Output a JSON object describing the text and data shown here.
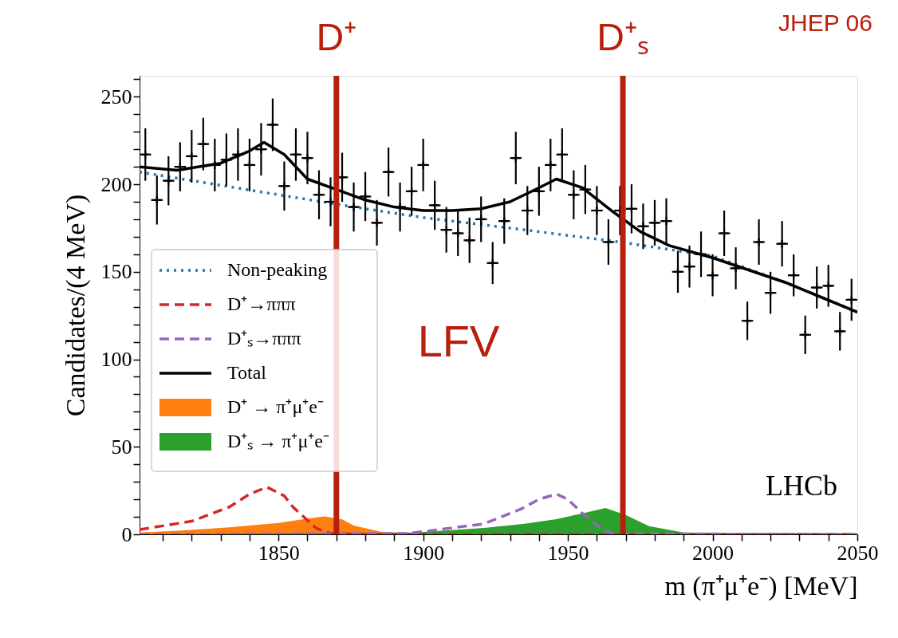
{
  "chart_data": {
    "type": "line",
    "xlabel": "m (π⁺μ⁺e⁻) [MeV]",
    "ylabel": "Candidates/(4 MeV)",
    "xlim": [
      1802,
      2050
    ],
    "xticks": [
      {
        "value": 1810,
        "label": null
      },
      {
        "value": 1820,
        "label": null
      },
      {
        "value": 1830,
        "label": null
      },
      {
        "value": 1840,
        "label": null
      },
      1850,
      {
        "value": 1860,
        "label": null
      },
      {
        "value": 1870,
        "label": null
      },
      {
        "value": 1880,
        "label": null
      },
      {
        "value": 1890,
        "label": null
      },
      1900,
      {
        "value": 1910,
        "label": null
      },
      {
        "value": 1920,
        "label": null
      },
      {
        "value": 1930,
        "label": null
      },
      {
        "value": 1940,
        "label": null
      },
      1950,
      {
        "value": 1960,
        "label": null
      },
      {
        "value": 1970,
        "label": null
      },
      {
        "value": 1980,
        "label": null
      },
      {
        "value": 1990,
        "label": null
      },
      2000,
      {
        "value": 2010,
        "label": null
      },
      {
        "value": 2020,
        "label": null
      },
      {
        "value": 2030,
        "label": null
      },
      {
        "value": 2040,
        "label": null
      },
      2050
    ],
    "ylim": [
      0,
      262
    ],
    "yticks": [
      0,
      {
        "value": 10,
        "label": null
      },
      {
        "value": 20,
        "label": null
      },
      {
        "value": 30,
        "label": null
      },
      {
        "value": 40,
        "label": null
      },
      50,
      {
        "value": 60,
        "label": null
      },
      {
        "value": 70,
        "label": null
      },
      {
        "value": 80,
        "label": null
      },
      {
        "value": 90,
        "label": null
      },
      100,
      {
        "value": 110,
        "label": null
      },
      {
        "value": 120,
        "label": null
      },
      {
        "value": 130,
        "label": null
      },
      {
        "value": 140,
        "label": null
      },
      150,
      {
        "value": 160,
        "label": null
      },
      {
        "value": 170,
        "label": null
      },
      {
        "value": 180,
        "label": null
      },
      {
        "value": 190,
        "label": null
      },
      200,
      {
        "value": 210,
        "label": null
      },
      {
        "value": 220,
        "label": null
      },
      {
        "value": 230,
        "label": null
      },
      {
        "value": 240,
        "label": null
      },
      250,
      {
        "value": 260,
        "label": null
      }
    ],
    "grid": false,
    "legend": "left",
    "series": [
      {
        "name": "Non-peaking",
        "line_style": "dotted",
        "color": "#1f77b4",
        "x": [
          1802,
          1850,
          1880,
          1900,
          1930,
          1968,
          2000,
          2025,
          2050
        ],
        "values": [
          207,
          194,
          186,
          181,
          175,
          167,
          159,
          144,
          127
        ]
      },
      {
        "name": "D⁺→πππ",
        "line_style": "dashed",
        "color": "#d62728",
        "x": [
          1802,
          1820,
          1833,
          1840,
          1846,
          1852,
          1855,
          1863,
          1868,
          1880,
          1950,
          2050
        ],
        "values": [
          2.7,
          7.5,
          15.6,
          23,
          27,
          22,
          15.6,
          3.5,
          0.5,
          0,
          0,
          0
        ]
      },
      {
        "name": "D⁺ₛ→πππ",
        "line_style": "dashed",
        "color": "#9467bd",
        "x": [
          1802,
          1895,
          1921,
          1934,
          1940,
          1946,
          1950,
          1955,
          1963,
          1967,
          2050
        ],
        "values": [
          0,
          0.5,
          6,
          14.6,
          20,
          23,
          20,
          12,
          1.5,
          0.3,
          0
        ]
      },
      {
        "name": "Total",
        "line_style": "solid",
        "color": "#000000",
        "x": [
          1802,
          1815,
          1830,
          1840,
          1845,
          1852,
          1860,
          1870,
          1880,
          1890,
          1900,
          1910,
          1920,
          1930,
          1940,
          1946,
          1955,
          1965,
          1975,
          1985,
          2000,
          2025,
          2050
        ],
        "values": [
          210,
          208,
          212,
          219,
          224,
          217,
          203,
          197,
          191,
          187,
          185,
          185,
          186,
          190,
          198,
          203,
          198,
          185,
          173,
          165,
          158,
          144,
          127
        ]
      },
      {
        "name": "D⁺ → π⁺μ⁺e⁻",
        "type": "area",
        "color": "#ff7f0e",
        "x": [
          1802,
          1815,
          1833,
          1850,
          1860,
          1866,
          1872,
          1876,
          1886,
          1900,
          2050
        ],
        "values": [
          1,
          2,
          4,
          6.5,
          9,
          10.2,
          8.5,
          5,
          1.2,
          0.5,
          0
        ]
      },
      {
        "name": "D⁺ₛ → π⁺μ⁺e⁻",
        "type": "area",
        "color": "#2ca02c",
        "x": [
          1802,
          1897,
          1921,
          1935,
          1946,
          1955,
          1963,
          1970,
          1978,
          1990,
          2010,
          2050
        ],
        "values": [
          0,
          1,
          3.6,
          6,
          8.7,
          12,
          15,
          11,
          4.7,
          1,
          0.4,
          0.2
        ]
      },
      {
        "type": "scatter",
        "marker": "cross",
        "color": "#000000",
        "x": [
          1804,
          1808,
          1812,
          1816,
          1820,
          1824,
          1828,
          1832,
          1836,
          1840,
          1844,
          1848,
          1852,
          1856,
          1860,
          1864,
          1868,
          1872,
          1876,
          1880,
          1884,
          1888,
          1892,
          1896,
          1900,
          1904,
          1908,
          1912,
          1916,
          1920,
          1924,
          1928,
          1932,
          1936,
          1940,
          1944,
          1948,
          1952,
          1956,
          1960,
          1964,
          1968,
          1972,
          1976,
          1980,
          1984,
          1988,
          1992,
          1996,
          2000,
          2004,
          2008,
          2012,
          2016,
          2020,
          2024,
          2028,
          2032,
          2036,
          2040,
          2044,
          2048
        ],
        "values": [
          217,
          191,
          202,
          210,
          216,
          223,
          211,
          214,
          217,
          211,
          220,
          234,
          199,
          217,
          215,
          194,
          190,
          204,
          187,
          193,
          178,
          207,
          187,
          196,
          211,
          188,
          174,
          172,
          168,
          180,
          155,
          179,
          215,
          185,
          196,
          211,
          217,
          194,
          197,
          185,
          167,
          185,
          186,
          176,
          178,
          179,
          150,
          153,
          160,
          148,
          172,
          152,
          122,
          167,
          138,
          166,
          148,
          114,
          141,
          142,
          116,
          134
        ],
        "errors": [
          15,
          14,
          14,
          14,
          15,
          15,
          15,
          15,
          15,
          15,
          15,
          15,
          14,
          15,
          15,
          14,
          14,
          14,
          14,
          14,
          13,
          14,
          14,
          14,
          15,
          14,
          13,
          13,
          13,
          13,
          12,
          13,
          15,
          14,
          14,
          15,
          15,
          14,
          14,
          14,
          13,
          14,
          14,
          13,
          13,
          13,
          12,
          12,
          13,
          12,
          13,
          12,
          11,
          13,
          12,
          13,
          12,
          11,
          12,
          12,
          11,
          12
        ],
        "xerrors": [
          2,
          2,
          2,
          2,
          2,
          2,
          2,
          2,
          2,
          2,
          2,
          2,
          2,
          2,
          2,
          2,
          2,
          2,
          2,
          2,
          2,
          2,
          2,
          2,
          2,
          2,
          2,
          2,
          2,
          2,
          2,
          2,
          2,
          2,
          2,
          2,
          2,
          2,
          2,
          2,
          2,
          2,
          2,
          2,
          2,
          2,
          2,
          2,
          2,
          2,
          2,
          2,
          2,
          2,
          2,
          2,
          2,
          2,
          2,
          2,
          2,
          2
        ]
      }
    ],
    "ref_lines": [
      {
        "axis": "x",
        "value": 1870,
        "label": "D⁺",
        "color": "#b8200e"
      },
      {
        "axis": "x",
        "value": 1969,
        "label": "D⁺ₛ",
        "color": "#b8200e"
      }
    ],
    "annotations": [
      "LFV",
      "LHCb",
      "JHEP 06"
    ]
  }
}
